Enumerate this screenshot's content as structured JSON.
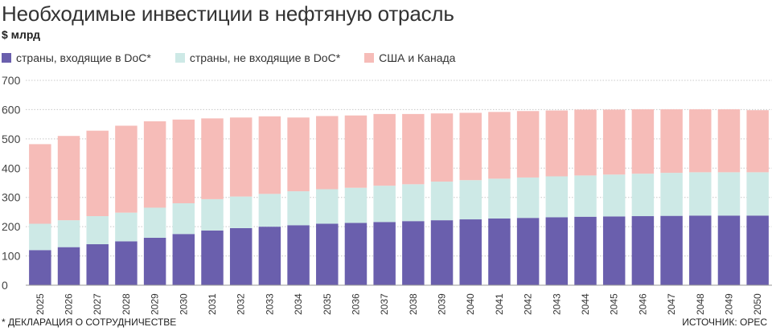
{
  "title": "Необходимые инвестиции в нефтяную отрасль",
  "unit": "$ млрд",
  "footnote": "* ДЕКЛАРАЦИЯ О СОТРУДНИЧЕСТВЕ",
  "source": "ИСТОЧНИК: ОРЕС",
  "colors": {
    "doc": "#6a5fad",
    "non_doc": "#cde9e6",
    "usa_canada": "#f6bcb8",
    "grid": "#c8c8c8",
    "text": "#333333"
  },
  "chart_data": {
    "type": "bar",
    "stacked": true,
    "categories": [
      "2025",
      "2026",
      "2027",
      "2028",
      "2029",
      "2030",
      "2031",
      "2032",
      "2033",
      "2034",
      "2035",
      "2036",
      "2037",
      "2038",
      "2039",
      "2040",
      "2041",
      "2042",
      "2043",
      "2044",
      "2045",
      "2046",
      "2047",
      "2048",
      "2049",
      "2050"
    ],
    "y_ticks": [
      "0",
      "100",
      "200",
      "300",
      "400",
      "500",
      "600",
      "700"
    ],
    "ylim": [
      0,
      700
    ],
    "grid": true,
    "legend_position": "top",
    "series": [
      {
        "name": "страны, входящие в DoC*",
        "color_key": "doc",
        "values": [
          120,
          130,
          140,
          150,
          162,
          175,
          187,
          195,
          200,
          205,
          210,
          213,
          216,
          219,
          222,
          225,
          228,
          230,
          232,
          234,
          235,
          236,
          237,
          238,
          238,
          238
        ]
      },
      {
        "name": "страны, не входящие в DoC*",
        "color_key": "non_doc",
        "values": [
          90,
          92,
          96,
          98,
          103,
          105,
          107,
          108,
          112,
          116,
          118,
          120,
          124,
          126,
          132,
          134,
          136,
          138,
          140,
          141,
          143,
          145,
          147,
          148,
          148,
          148
        ]
      },
      {
        "name": "США и Канада",
        "color_key": "usa_canada",
        "values": [
          272,
          288,
          292,
          297,
          295,
          286,
          276,
          270,
          265,
          252,
          250,
          247,
          245,
          240,
          233,
          230,
          228,
          227,
          225,
          225,
          222,
          220,
          217,
          215,
          215,
          212
        ]
      }
    ]
  }
}
